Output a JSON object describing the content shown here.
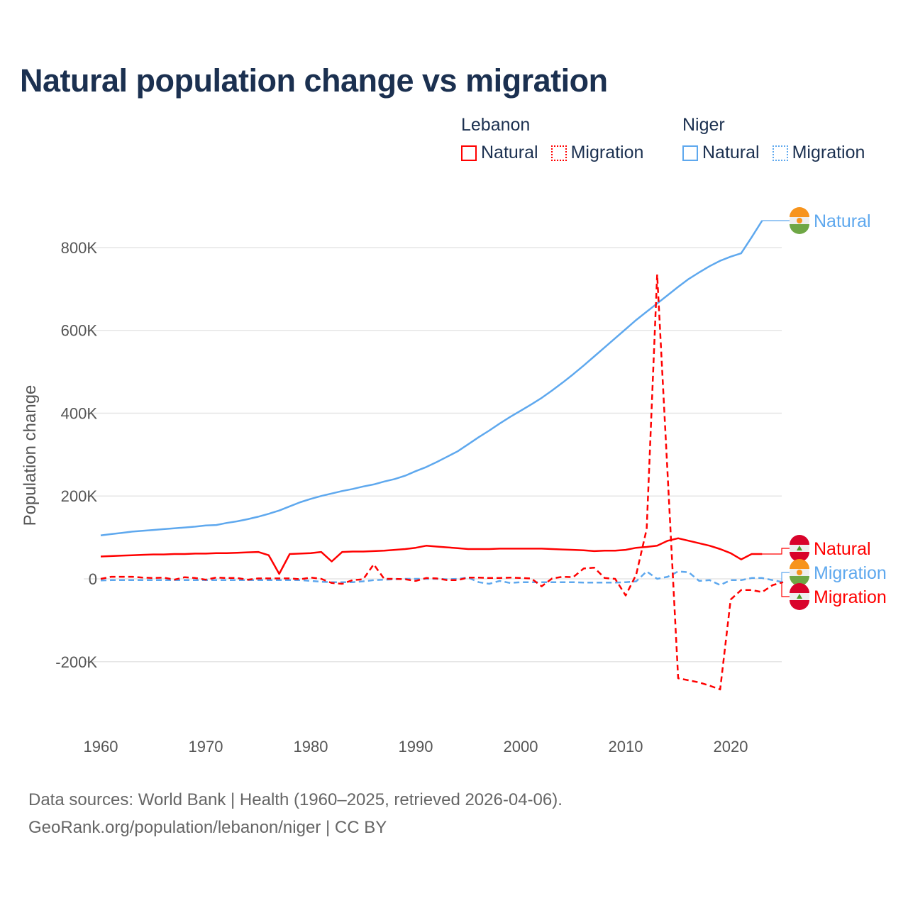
{
  "title": "Natural population change vs migration",
  "legend": {
    "groups": [
      {
        "name": "Lebanon",
        "items": [
          {
            "label": "Natural",
            "style": "solid",
            "color": "#ff0000"
          },
          {
            "label": "Migration",
            "style": "dotted",
            "color": "#ff0000"
          }
        ]
      },
      {
        "name": "Niger",
        "items": [
          {
            "label": "Natural",
            "style": "solid",
            "color": "#5ea8ee"
          },
          {
            "label": "Migration",
            "style": "dotted",
            "color": "#5ea8ee"
          }
        ]
      }
    ]
  },
  "source": {
    "line1": "Data sources: World Bank | Health (1960–2025, retrieved 2026-04-06).",
    "line2": "GeoRank.org/population/lebanon/niger | CC BY"
  },
  "chart_data": {
    "type": "line",
    "title": "Natural population change vs migration",
    "xlabel": "",
    "ylabel": "Population change",
    "xlim": [
      1960,
      2025
    ],
    "ylim": [
      -300000,
      900000
    ],
    "x_ticks": [
      1960,
      1970,
      1980,
      1990,
      2000,
      2010,
      2020
    ],
    "x_tick_labels": [
      "1960",
      "1970",
      "1980",
      "1990",
      "2000",
      "2010",
      "2020"
    ],
    "y_ticks": [
      -200000,
      0,
      200000,
      400000,
      600000,
      800000
    ],
    "y_tick_labels": [
      "-200K",
      "0",
      "200K",
      "400K",
      "600K",
      "800K"
    ],
    "grid": true,
    "legend_placement": "top-right",
    "x_start": 1960,
    "series": [
      {
        "name": "Niger Natural",
        "country": "Niger",
        "label": "Natural",
        "color": "#5ea8ee",
        "dash": "solid",
        "values_k": [
          105,
          108,
          111,
          114,
          116,
          118,
          120,
          122,
          124,
          126,
          129,
          130,
          135,
          139,
          144,
          150,
          157,
          165,
          175,
          185,
          193,
          200,
          206,
          212,
          217,
          223,
          228,
          235,
          241,
          249,
          260,
          270,
          282,
          295,
          308,
          325,
          342,
          358,
          375,
          391,
          406,
          421,
          437,
          455,
          474,
          494,
          515,
          537,
          559,
          581,
          603,
          625,
          645,
          665,
          685,
          705,
          724,
          740,
          755,
          768,
          778,
          786,
          825,
          865,
          null,
          null
        ]
      },
      {
        "name": "Lebanon Natural",
        "country": "Lebanon",
        "label": "Natural",
        "color": "#ff0000",
        "dash": "solid",
        "values_k": [
          54,
          55,
          56,
          57,
          58,
          59,
          59,
          60,
          60,
          61,
          61,
          62,
          62,
          63,
          64,
          65,
          57,
          12,
          60,
          61,
          62,
          65,
          42,
          65,
          66,
          66,
          67,
          68,
          70,
          72,
          75,
          80,
          78,
          76,
          74,
          72,
          72,
          72,
          73,
          73,
          73,
          73,
          73,
          72,
          71,
          70,
          69,
          67,
          68,
          68,
          70,
          75,
          77,
          80,
          92,
          98,
          92,
          86,
          80,
          72,
          62,
          47,
          60,
          60,
          null,
          null
        ]
      },
      {
        "name": "Niger Migration",
        "country": "Niger",
        "label": "Migration",
        "color": "#5ea8ee",
        "dash": "dashed",
        "values_k": [
          -4,
          -3,
          -3,
          -3,
          -3,
          -3,
          -3,
          -3,
          -3,
          -3,
          -3,
          -3,
          -3,
          -3,
          -3,
          -3,
          -3,
          -3,
          -3,
          -3,
          -5,
          -7,
          -8,
          -8,
          -8,
          -6,
          -3,
          -2,
          -1,
          0,
          0,
          0,
          0,
          -1,
          0,
          3,
          -8,
          -12,
          -5,
          -10,
          -8,
          -8,
          -8,
          -8,
          -8,
          -8,
          -9,
          -9,
          -9,
          -9,
          -8,
          -6,
          18,
          0,
          5,
          18,
          16,
          -5,
          -3,
          -15,
          -3,
          -3,
          2,
          2,
          -3,
          -8
        ]
      },
      {
        "name": "Lebanon Migration",
        "country": "Lebanon",
        "label": "Migration",
        "color": "#ff0000",
        "dash": "dashed",
        "values_k": [
          0,
          5,
          5,
          5,
          3,
          2,
          3,
          -2,
          4,
          2,
          -2,
          3,
          2,
          2,
          -2,
          1,
          1,
          1,
          1,
          -1,
          3,
          0,
          -10,
          -12,
          -3,
          -1,
          35,
          0,
          0,
          -1,
          -5,
          2,
          1,
          -3,
          -3,
          3,
          3,
          2,
          2,
          3,
          2,
          1,
          -18,
          1,
          5,
          4,
          25,
          27,
          2,
          0,
          -40,
          10,
          120,
          735,
          250,
          -240,
          -245,
          -250,
          -258,
          -267,
          -50,
          -27,
          -27,
          -32,
          -15,
          -8
        ]
      }
    ],
    "end_labels": [
      {
        "text": "Natural",
        "series": "Niger Natural",
        "flag": "niger"
      },
      {
        "text": "Natural",
        "series": "Lebanon Natural",
        "flag": "lebanon"
      },
      {
        "text": "Migration",
        "series": "Niger Migration",
        "flag": "niger"
      },
      {
        "text": "Migration",
        "series": "Lebanon Migration",
        "flag": "lebanon"
      }
    ]
  }
}
